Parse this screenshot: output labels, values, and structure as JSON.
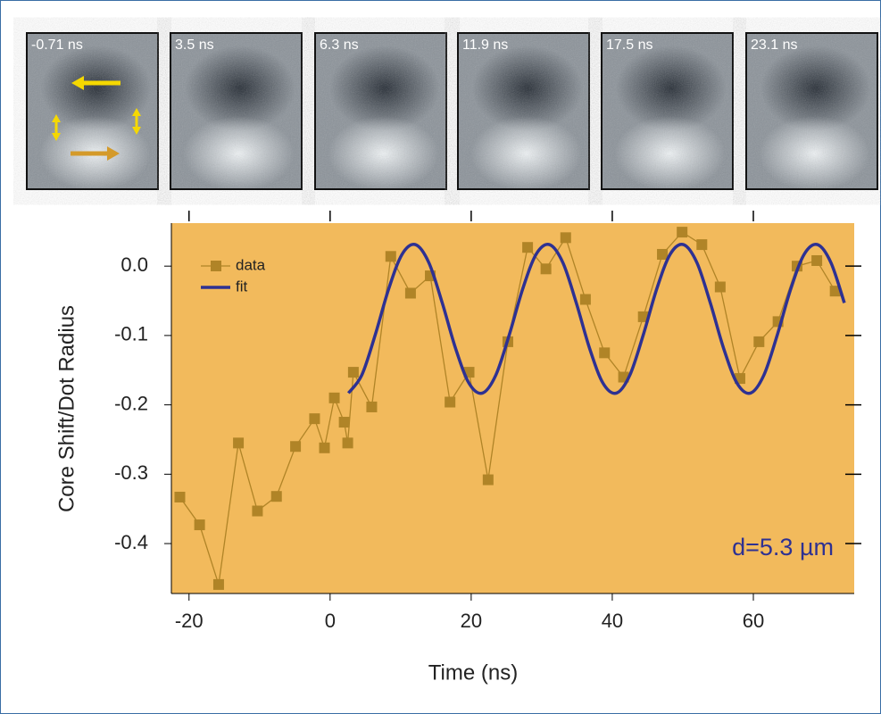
{
  "panels": [
    "-0.71 ns",
    "3.5 ns",
    "6.3 ns",
    "11.9 ns",
    "17.5 ns",
    "23.1 ns"
  ],
  "chart_data": {
    "type": "line",
    "xlabel": "Time (ns)",
    "ylabel": "Core Shift/Dot Radius",
    "annotation": "d=5.3 µm",
    "xlim": [
      -22.5,
      74.3
    ],
    "ylim": [
      -0.472,
      0.062
    ],
    "xticks": [
      -20,
      0,
      20,
      40,
      60
    ],
    "yticks": [
      {
        "value": 0,
        "label": "0.0"
      },
      -0.1,
      -0.2,
      -0.3,
      -0.4
    ],
    "background": "#f2ba5c",
    "series": [
      {
        "name": "data",
        "color": "#b08427",
        "marker": "square",
        "x": [
          -21.3,
          -18.5,
          -15.8,
          -13.0,
          -10.3,
          -7.6,
          -4.9,
          -2.2,
          -0.8,
          0.6,
          2.0,
          2.5,
          3.3,
          5.9,
          8.6,
          11.4,
          14.2,
          17.0,
          19.7,
          22.4,
          25.2,
          28.0,
          30.6,
          33.4,
          36.2,
          38.9,
          41.6,
          44.4,
          47.1,
          49.9,
          52.7,
          55.3,
          58.1,
          60.8,
          63.5,
          66.2,
          69.0,
          71.6
        ],
        "values": [
          -0.333,
          -0.373,
          -0.459,
          -0.255,
          -0.353,
          -0.332,
          -0.26,
          -0.22,
          -0.262,
          -0.19,
          -0.225,
          -0.255,
          -0.153,
          -0.203,
          0.014,
          -0.039,
          -0.014,
          -0.196,
          -0.153,
          -0.308,
          -0.109,
          0.027,
          -0.004,
          0.041,
          -0.048,
          -0.125,
          -0.16,
          -0.073,
          0.017,
          0.049,
          0.031,
          -0.03,
          -0.162,
          -0.109,
          -0.08,
          0.0,
          0.008,
          -0.036
        ]
      },
      {
        "name": "fit",
        "color": "#2e3192",
        "marker": "none",
        "x": [
          2.6,
          4.5,
          6.4,
          8.3,
          10.2,
          12.1,
          14.0,
          15.9,
          17.8,
          19.7,
          21.6,
          23.5,
          25.4,
          27.3,
          29.2,
          31.1,
          33.0,
          34.9,
          36.8,
          38.7,
          40.6,
          42.5,
          44.4,
          46.3,
          48.2,
          50.1,
          52.0,
          53.9,
          55.8,
          57.7,
          59.6,
          61.5,
          63.4,
          65.3,
          67.2,
          69.1,
          71.0,
          72.9
        ],
        "values": [
          -0.183,
          -0.157,
          -0.099,
          -0.033,
          0.017,
          0.031,
          0.005,
          -0.053,
          -0.119,
          -0.169,
          -0.183,
          -0.157,
          -0.099,
          -0.033,
          0.017,
          0.031,
          0.005,
          -0.053,
          -0.119,
          -0.169,
          -0.183,
          -0.157,
          -0.099,
          -0.033,
          0.017,
          0.031,
          0.005,
          -0.053,
          -0.119,
          -0.169,
          -0.183,
          -0.157,
          -0.099,
          -0.033,
          0.017,
          0.031,
          0.005,
          -0.053
        ]
      }
    ]
  }
}
